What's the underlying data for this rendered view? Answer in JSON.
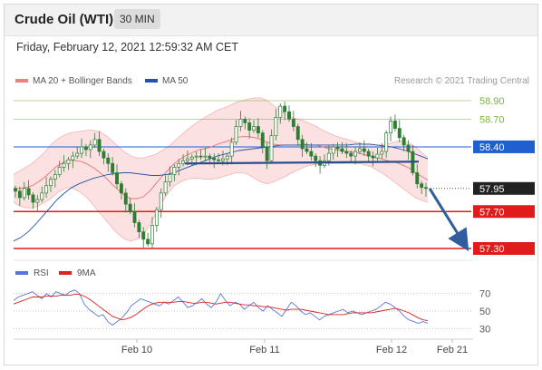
{
  "header": {
    "title": "Crude Oil (WTI)",
    "timeframe": "30 MIN"
  },
  "datetime": "Friday, February 12, 2021 12:59:32 AM CET",
  "copyright": "Research © 2021 Trading Central",
  "colors": {
    "bollinger": "#f08080",
    "ma50": "#2255aa",
    "rsi": "#5577dd",
    "ma9": "#dd2222",
    "green_level": "#79b43c",
    "blue_level": "#1f5fd1",
    "red_level": "#e01b1b",
    "candle": "#2e7d32",
    "arrow": "#2f5d9e",
    "band_fill": "#fbe1e1"
  },
  "chart_data": [
    {
      "type": "line",
      "title": "Crude Oil (WTI)",
      "legend": [
        "MA 20 + Bollinger Bands",
        "MA 50"
      ],
      "x_ticks": [
        "Feb 10",
        "Feb 11",
        "Feb 12",
        "Feb 21"
      ],
      "ylim": [
        57.1,
        59.1
      ],
      "levels": [
        {
          "value": 58.9,
          "label": "58.90",
          "color": "green"
        },
        {
          "value": 58.7,
          "label": "58.70",
          "color": "green"
        },
        {
          "value": 58.4,
          "label": "58.40",
          "color": "blue"
        },
        {
          "value": 57.95,
          "label": "57.95",
          "color": "current"
        },
        {
          "value": 57.7,
          "label": "57.70",
          "color": "red"
        },
        {
          "value": 57.3,
          "label": "57.30",
          "color": "red"
        }
      ],
      "price_close": [
        57.92,
        57.85,
        57.95,
        57.88,
        57.8,
        57.83,
        57.9,
        57.98,
        58.05,
        58.1,
        58.18,
        58.22,
        58.26,
        58.3,
        58.33,
        58.4,
        58.37,
        58.42,
        58.48,
        58.35,
        58.28,
        58.22,
        58.12,
        58.0,
        57.9,
        57.78,
        57.7,
        57.58,
        57.48,
        57.4,
        57.35,
        57.55,
        57.72,
        57.9,
        58.02,
        58.1,
        58.18,
        58.22,
        58.25,
        58.27,
        58.29,
        58.3,
        58.29,
        58.3,
        58.28,
        58.26,
        58.25,
        58.27,
        58.3,
        58.45,
        58.62,
        58.7,
        58.66,
        58.58,
        58.62,
        58.55,
        58.4,
        58.25,
        58.52,
        58.72,
        58.84,
        58.78,
        58.7,
        58.62,
        58.48,
        58.38,
        58.35,
        58.3,
        58.25,
        58.2,
        58.25,
        58.33,
        58.4,
        58.38,
        58.35,
        58.33,
        58.3,
        58.35,
        58.38,
        58.35,
        58.3,
        58.28,
        58.32,
        58.35,
        58.55,
        58.68,
        58.6,
        58.5,
        58.42,
        58.35,
        58.12,
        58.0,
        57.96,
        57.95
      ],
      "ma20_upper": [
        58.1,
        58.14,
        58.18,
        58.22,
        58.28,
        58.34,
        58.42,
        58.48,
        58.52,
        58.55,
        58.56,
        58.57,
        58.58,
        58.58,
        58.56,
        58.52,
        58.46,
        58.4,
        58.34,
        58.3,
        58.28,
        58.28,
        58.3,
        58.32,
        58.36,
        58.4,
        58.46,
        58.52,
        58.58,
        58.63,
        58.68,
        58.72,
        58.76,
        58.8,
        58.82,
        58.85,
        58.88,
        58.9,
        58.92,
        58.93,
        58.93,
        58.9,
        58.85,
        58.8,
        58.76,
        58.72,
        58.7,
        58.68,
        58.65,
        58.62,
        58.58,
        58.55,
        58.52,
        58.5,
        58.48,
        58.46,
        58.44,
        58.42,
        58.42,
        58.42,
        58.42,
        58.44,
        58.46,
        58.46,
        58.44,
        58.4,
        58.34,
        58.28
      ],
      "ma20_lower": [
        57.8,
        57.76,
        57.74,
        57.74,
        57.76,
        57.8,
        57.84,
        57.9,
        57.94,
        57.96,
        57.94,
        57.9,
        57.84,
        57.76,
        57.68,
        57.6,
        57.52,
        57.45,
        57.4,
        57.38,
        57.4,
        57.45,
        57.55,
        57.68,
        57.8,
        57.9,
        57.98,
        58.02,
        58.05,
        58.06,
        58.06,
        58.05,
        58.05,
        58.06,
        58.08,
        58.1,
        58.12,
        58.12,
        58.1,
        58.06,
        58.02,
        58.0,
        58.02,
        58.05,
        58.08,
        58.12,
        58.15,
        58.18,
        58.2,
        58.21,
        58.22,
        58.22,
        58.22,
        58.22,
        58.22,
        58.22,
        58.22,
        58.2,
        58.18,
        58.14,
        58.1,
        58.05,
        58.0,
        57.95,
        57.9,
        57.85,
        57.82,
        57.8
      ],
      "ma20": [
        57.95,
        57.95,
        57.96,
        57.98,
        58.02,
        58.07,
        58.13,
        58.19,
        58.23,
        58.26,
        58.25,
        58.24,
        58.21,
        58.17,
        58.12,
        58.06,
        57.99,
        57.93,
        57.87,
        57.84,
        57.84,
        57.86,
        57.92,
        58.0,
        58.08,
        58.15,
        58.22,
        58.27,
        58.31,
        58.34,
        58.37,
        58.38,
        58.4,
        58.43,
        58.45,
        58.47,
        58.5,
        58.51,
        58.51,
        58.5,
        58.48,
        58.45,
        58.43,
        58.42,
        58.42,
        58.42,
        58.42,
        58.43,
        58.42,
        58.42,
        58.4,
        58.38,
        58.37,
        58.36,
        58.35,
        58.34,
        58.33,
        58.31,
        58.3,
        58.28,
        58.26,
        58.24,
        58.23,
        58.2,
        58.17,
        58.12,
        58.08,
        58.04
      ],
      "ma50": [
        57.38,
        57.42,
        57.48,
        57.56,
        57.65,
        57.74,
        57.83,
        57.9,
        57.96,
        58.0,
        58.03,
        58.06,
        58.08,
        58.1,
        58.11,
        58.12,
        58.12,
        58.11,
        58.1,
        58.09,
        58.09,
        58.1,
        58.12,
        58.15,
        58.18,
        58.21,
        58.24,
        58.27,
        58.3,
        58.32,
        58.34,
        58.36,
        58.37,
        58.38,
        58.39,
        58.4,
        58.41,
        58.42,
        58.42,
        58.42,
        58.42,
        58.42,
        58.42,
        58.42,
        58.42,
        58.42,
        58.42,
        58.43,
        58.43,
        58.43,
        58.42,
        58.41,
        58.4,
        58.38,
        58.36,
        58.33,
        58.3,
        58.27
      ],
      "trendline": [
        58.22,
        58.24
      ]
    },
    {
      "type": "line",
      "legend": [
        "RSI",
        "9MA"
      ],
      "yticks": [
        70,
        50,
        30
      ],
      "ylim": [
        20,
        80
      ],
      "rsi": [
        62,
        66,
        68,
        70,
        72,
        68,
        64,
        70,
        66,
        72,
        70,
        68,
        72,
        74,
        70,
        58,
        52,
        48,
        44,
        46,
        38,
        34,
        38,
        42,
        48,
        56,
        60,
        64,
        62,
        60,
        58,
        56,
        60,
        58,
        62,
        66,
        60,
        54,
        56,
        60,
        64,
        58,
        54,
        60,
        70,
        62,
        56,
        60,
        58,
        52,
        56,
        60,
        54,
        50,
        56,
        52,
        48,
        44,
        52,
        60,
        56,
        50,
        46,
        48,
        44,
        40,
        44,
        46,
        48,
        50,
        52,
        48,
        50,
        48,
        46,
        48,
        50,
        52,
        56,
        60,
        58,
        54,
        50,
        44,
        40,
        38,
        36,
        38,
        36
      ],
      "ma9": [
        58,
        60,
        62,
        64,
        66,
        66,
        66,
        67,
        67,
        67,
        68,
        68,
        68,
        69,
        69,
        67,
        64,
        60,
        56,
        52,
        48,
        44,
        42,
        40,
        41,
        43,
        46,
        50,
        54,
        57,
        59,
        60,
        60,
        60,
        60,
        61,
        61,
        60,
        59,
        59,
        60,
        60,
        59,
        58,
        59,
        60,
        60,
        59,
        58,
        57,
        57,
        56,
        56,
        55,
        55,
        54,
        53,
        52,
        51,
        52,
        52,
        52,
        51,
        50,
        49,
        48,
        47,
        46,
        46,
        46,
        46,
        47,
        48,
        48,
        48,
        48,
        48,
        49,
        50,
        51,
        52,
        53,
        52,
        50,
        48,
        45,
        42,
        40,
        39
      ]
    }
  ]
}
